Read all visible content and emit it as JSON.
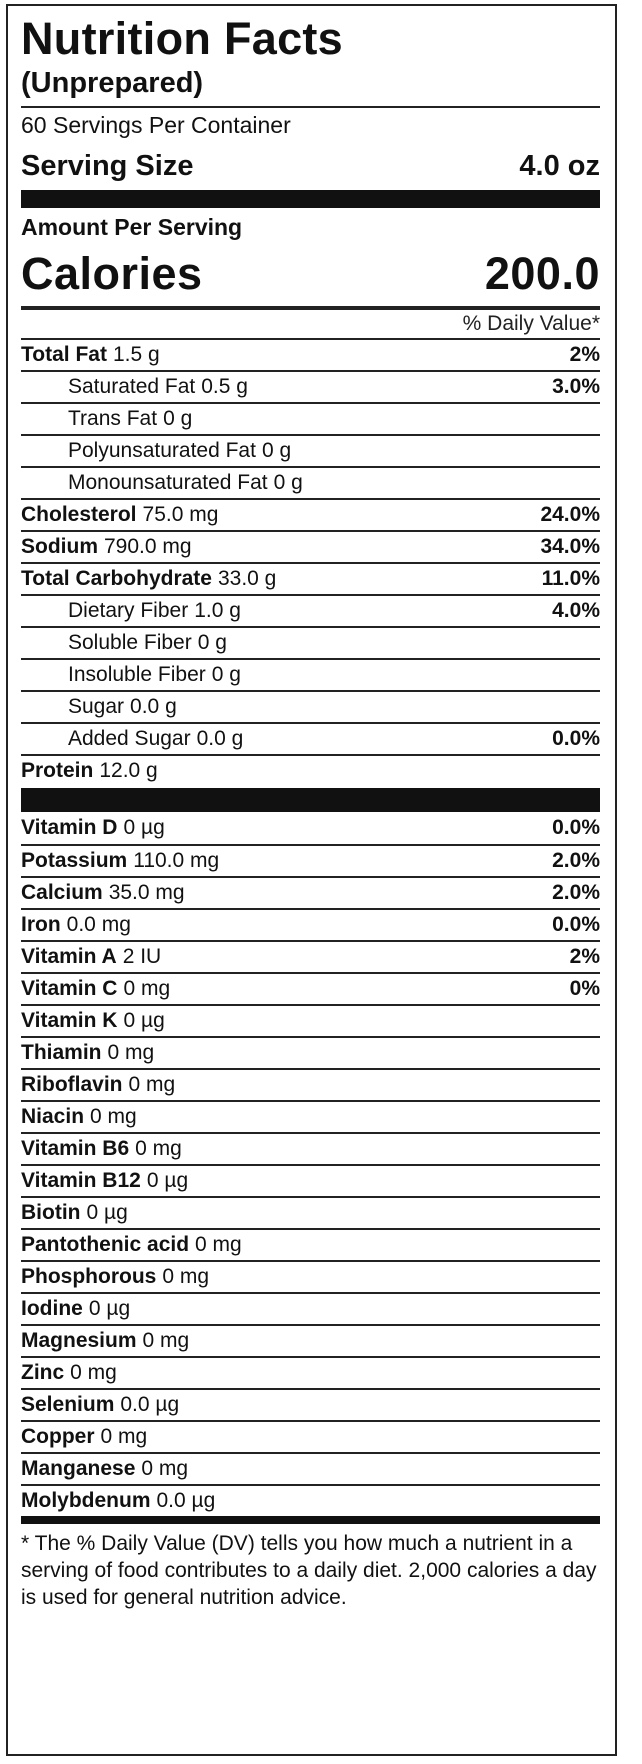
{
  "header": {
    "title": "Nutrition Facts",
    "subtitle": "(Unprepared)",
    "servings_per_container": "60 Servings Per Container",
    "serving_size_label": "Serving Size",
    "serving_size_value": "4.0 oz",
    "amount_per_serving": "Amount Per Serving",
    "calories_label": "Calories",
    "calories_value": "200.0",
    "daily_value_header": "% Daily Value*"
  },
  "nutrients": [
    {
      "name": "Total Fat",
      "amount": "1.5 g",
      "dv": "2%",
      "sub": false
    },
    {
      "name": "Saturated Fat",
      "amount": "0.5 g",
      "dv": "3.0%",
      "sub": true
    },
    {
      "name": "Trans Fat",
      "amount": "0 g",
      "dv": "",
      "sub": true
    },
    {
      "name": "Polyunsaturated Fat",
      "amount": "0 g",
      "dv": "",
      "sub": true
    },
    {
      "name": "Monounsaturated Fat",
      "amount": "0 g",
      "dv": "",
      "sub": true
    },
    {
      "name": "Cholesterol",
      "amount": "75.0 mg",
      "dv": "24.0%",
      "sub": false
    },
    {
      "name": "Sodium",
      "amount": "790.0 mg",
      "dv": "34.0%",
      "sub": false
    },
    {
      "name": "Total Carbohydrate",
      "amount": "33.0 g",
      "dv": "11.0%",
      "sub": false
    },
    {
      "name": "Dietary Fiber",
      "amount": "1.0 g",
      "dv": "4.0%",
      "sub": true
    },
    {
      "name": "Soluble Fiber",
      "amount": "0 g",
      "dv": "",
      "sub": true
    },
    {
      "name": "Insoluble Fiber",
      "amount": "0 g",
      "dv": "",
      "sub": true
    },
    {
      "name": "Sugar",
      "amount": "0.0 g",
      "dv": "",
      "sub": true
    },
    {
      "name": "Added Sugar",
      "amount": "0.0 g",
      "dv": "0.0%",
      "sub": true
    },
    {
      "name": "Protein",
      "amount": "12.0 g",
      "dv": "",
      "sub": false
    }
  ],
  "vitamins": [
    {
      "name": "Vitamin D",
      "amount": "0 µg",
      "dv": "0.0%"
    },
    {
      "name": "Potassium",
      "amount": "110.0 mg",
      "dv": "2.0%"
    },
    {
      "name": "Calcium",
      "amount": "35.0 mg",
      "dv": "2.0%"
    },
    {
      "name": "Iron",
      "amount": "0.0 mg",
      "dv": "0.0%"
    },
    {
      "name": "Vitamin A",
      "amount": "2 IU",
      "dv": "2%"
    },
    {
      "name": "Vitamin C",
      "amount": "0 mg",
      "dv": "0%"
    },
    {
      "name": "Vitamin K",
      "amount": "0 µg",
      "dv": ""
    },
    {
      "name": "Thiamin",
      "amount": "0 mg",
      "dv": ""
    },
    {
      "name": "Riboflavin",
      "amount": "0 mg",
      "dv": ""
    },
    {
      "name": "Niacin",
      "amount": "0 mg",
      "dv": ""
    },
    {
      "name": "Vitamin B6",
      "amount": "0 mg",
      "dv": ""
    },
    {
      "name": "Vitamin B12",
      "amount": "0 µg",
      "dv": ""
    },
    {
      "name": "Biotin",
      "amount": "0 µg",
      "dv": ""
    },
    {
      "name": "Pantothenic acid",
      "amount": "0 mg",
      "dv": ""
    },
    {
      "name": "Phosphorous",
      "amount": "0 mg",
      "dv": ""
    },
    {
      "name": "Iodine",
      "amount": "0 µg",
      "dv": ""
    },
    {
      "name": "Magnesium",
      "amount": "0 mg",
      "dv": ""
    },
    {
      "name": "Zinc",
      "amount": "0 mg",
      "dv": ""
    },
    {
      "name": "Selenium",
      "amount": "0.0 µg",
      "dv": ""
    },
    {
      "name": "Copper",
      "amount": "0 mg",
      "dv": ""
    },
    {
      "name": "Manganese",
      "amount": "0 mg",
      "dv": ""
    },
    {
      "name": "Molybdenum",
      "amount": "0.0 µg",
      "dv": ""
    }
  ],
  "footnote": "* The % Daily Value (DV) tells you how much a nutrient in a serving of food contributes to a daily diet. 2,000 calories a day is used for general nutrition advice."
}
